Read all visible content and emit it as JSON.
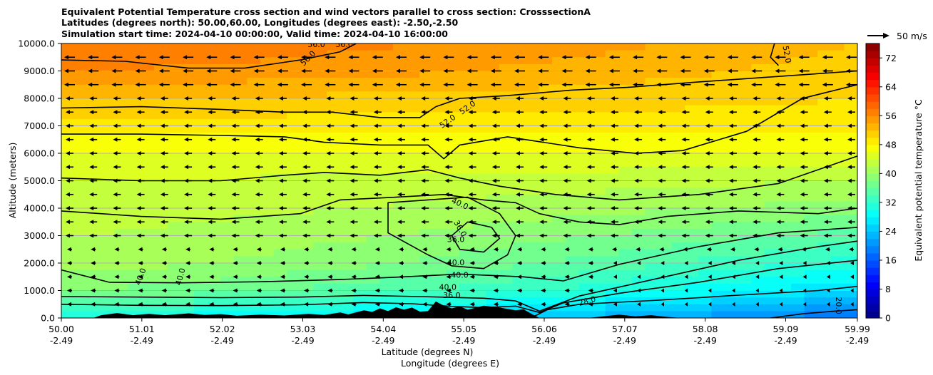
{
  "chart_data": {
    "type": "heatmap",
    "title_lines": [
      "Equivalent Potential Temperature cross section and wind vectors parallel to cross section: CrosssectionA",
      "Latitudes (degrees north): 50.00,60.00, Longitudes (degrees east): -2.50,-2.50",
      "Simulation start time: 2024-04-10 00:00:00, Valid time: 2024-04-10 16:00:00"
    ],
    "ylabel": "Altitude (meters)",
    "xlabel_lines": [
      "Latitude (degrees N)",
      "Longitude (degrees E)"
    ],
    "xlim": [
      50.0,
      59.99
    ],
    "ylim": [
      0,
      10000
    ],
    "x_ticks": [
      {
        "value": 50.0,
        "lat": "50.00",
        "lon": "-2.49"
      },
      {
        "value": 51.01,
        "lat": "51.01",
        "lon": "-2.49"
      },
      {
        "value": 52.02,
        "lat": "52.02",
        "lon": "-2.49"
      },
      {
        "value": 53.03,
        "lat": "53.03",
        "lon": "-2.49"
      },
      {
        "value": 54.04,
        "lat": "54.04",
        "lon": "-2.49"
      },
      {
        "value": 55.05,
        "lat": "55.05",
        "lon": "-2.49"
      },
      {
        "value": 56.06,
        "lat": "56.06",
        "lon": "-2.49"
      },
      {
        "value": 57.07,
        "lat": "57.07",
        "lon": "-2.49"
      },
      {
        "value": 58.08,
        "lat": "58.08",
        "lon": "-2.49"
      },
      {
        "value": 59.09,
        "lat": "59.09",
        "lon": "-2.49"
      },
      {
        "value": 59.99,
        "lat": "59.99",
        "lon": "-2.49"
      }
    ],
    "y_ticks": [
      {
        "value": 0,
        "label": "0.0"
      },
      {
        "value": 1000,
        "label": "1000.0"
      },
      {
        "value": 2000,
        "label": "2000.0"
      },
      {
        "value": 3000,
        "label": "3000.0"
      },
      {
        "value": 4000,
        "label": "4000.0"
      },
      {
        "value": 5000,
        "label": "5000.0"
      },
      {
        "value": 6000,
        "label": "6000.0"
      },
      {
        "value": 7000,
        "label": "7000.0"
      },
      {
        "value": 8000,
        "label": "8000.0"
      },
      {
        "value": 9000,
        "label": "9000.0"
      },
      {
        "value": 10000,
        "label": "10000.0"
      }
    ],
    "grid": "horizontal",
    "colorbar": {
      "label": "Equivalent potential temperature $^\\circ$C",
      "label_text": "Equivalent potential temperature °C",
      "min": 0,
      "max": 76,
      "ticks": [
        "0",
        "8",
        "16",
        "24",
        "32",
        "40",
        "48",
        "56",
        "64",
        "72"
      ],
      "colormap": "jet"
    },
    "quiver_key": {
      "label": "50 m/s",
      "value": 50
    },
    "wind_direction": "toward decreasing latitude (leftward)",
    "theta_e_profile": [
      {
        "alt": 0,
        "north_edge": 18,
        "south_edge": 30
      },
      {
        "alt": 1000,
        "north_edge": 26,
        "south_edge": 38
      },
      {
        "alt": 2000,
        "north_edge": 31,
        "south_edge": 41
      },
      {
        "alt": 3000,
        "north_edge": 35,
        "south_edge": 42
      },
      {
        "alt": 4000,
        "north_edge": 39,
        "south_edge": 43
      },
      {
        "alt": 5000,
        "north_edge": 42,
        "south_edge": 44
      },
      {
        "alt": 6000,
        "north_edge": 46,
        "south_edge": 46
      },
      {
        "alt": 7000,
        "north_edge": 49,
        "south_edge": 49
      },
      {
        "alt": 8000,
        "north_edge": 50,
        "south_edge": 52
      },
      {
        "alt": 9000,
        "north_edge": 51,
        "south_edge": 56
      },
      {
        "alt": 10000,
        "north_edge": 52,
        "south_edge": 58
      }
    ],
    "contours": [
      {
        "level": 28,
        "points": [
          [
            55.9,
            10
          ],
          [
            56.1,
            300
          ],
          [
            56.5,
            500
          ],
          [
            57.5,
            650
          ],
          [
            58.5,
            830
          ],
          [
            59.5,
            1000
          ],
          [
            59.99,
            1150
          ]
        ]
      },
      {
        "level": 20,
        "points": [
          [
            58.9,
            0
          ],
          [
            59.3,
            150
          ],
          [
            59.7,
            250
          ],
          [
            59.99,
            300
          ]
        ]
      },
      {
        "level": 36,
        "points": [
          [
            50.0,
            500
          ],
          [
            51.0,
            460
          ],
          [
            52.0,
            450
          ],
          [
            53.0,
            480
          ],
          [
            53.8,
            560
          ],
          [
            54.4,
            520
          ],
          [
            54.9,
            420
          ],
          [
            55.3,
            380
          ],
          [
            55.7,
            430
          ],
          [
            56.0,
            200
          ],
          [
            56.3,
            550
          ],
          [
            57.0,
            900
          ],
          [
            58.0,
            1300
          ],
          [
            59.0,
            1800
          ],
          [
            59.99,
            2100
          ]
        ]
      },
      {
        "level": 40,
        "points": [
          [
            50.0,
            780
          ],
          [
            51.0,
            760
          ],
          [
            52.0,
            740
          ],
          [
            53.0,
            760
          ],
          [
            53.8,
            820
          ],
          [
            54.5,
            780
          ],
          [
            55.3,
            720
          ],
          [
            55.7,
            620
          ],
          [
            56.0,
            250
          ],
          [
            56.5,
            800
          ],
          [
            57.5,
            1450
          ],
          [
            58.5,
            2100
          ],
          [
            59.5,
            2600
          ],
          [
            59.99,
            2800
          ]
        ]
      },
      {
        "level": 40,
        "points": [
          [
            50.0,
            1750
          ],
          [
            50.6,
            1300
          ],
          [
            51.5,
            1280
          ],
          [
            52.5,
            1320
          ],
          [
            53.5,
            1400
          ],
          [
            54.3,
            1500
          ],
          [
            55.0,
            1600
          ],
          [
            55.8,
            1500
          ],
          [
            56.3,
            1350
          ],
          [
            57.0,
            1950
          ],
          [
            58.0,
            2600
          ],
          [
            59.0,
            3100
          ],
          [
            59.99,
            3300
          ]
        ]
      },
      {
        "level": 40,
        "points": [
          [
            54.6,
            4300
          ],
          [
            54.1,
            4200
          ],
          [
            54.1,
            3100
          ],
          [
            54.6,
            2300
          ],
          [
            54.9,
            1900
          ],
          [
            55.3,
            1800
          ],
          [
            55.6,
            2300
          ],
          [
            55.7,
            3000
          ],
          [
            55.5,
            3800
          ],
          [
            55.1,
            4400
          ],
          [
            54.6,
            4300
          ]
        ]
      },
      {
        "level": 36,
        "points": [
          [
            54.9,
            3000
          ],
          [
            55.1,
            3500
          ],
          [
            55.4,
            3300
          ],
          [
            55.5,
            2900
          ],
          [
            55.3,
            2400
          ],
          [
            55.0,
            2500
          ],
          [
            54.9,
            3000
          ]
        ]
      },
      {
        "level": 44,
        "points": [
          [
            50.0,
            3900
          ],
          [
            51.0,
            3700
          ],
          [
            52.0,
            3600
          ],
          [
            53.0,
            3800
          ],
          [
            53.5,
            4300
          ],
          [
            54.2,
            4400
          ],
          [
            54.8,
            4500
          ],
          [
            55.3,
            4300
          ],
          [
            55.7,
            4200
          ],
          [
            56.0,
            3800
          ],
          [
            56.5,
            3500
          ],
          [
            57.0,
            3400
          ],
          [
            57.6,
            3700
          ],
          [
            58.5,
            3900
          ],
          [
            59.5,
            3800
          ],
          [
            59.99,
            4000
          ]
        ]
      },
      {
        "level": 46,
        "points": [
          [
            50.0,
            5100
          ],
          [
            51.0,
            5000
          ],
          [
            52.0,
            5000
          ],
          [
            52.8,
            5200
          ],
          [
            53.3,
            5300
          ],
          [
            54.0,
            5200
          ],
          [
            54.6,
            5400
          ],
          [
            55.0,
            5100
          ],
          [
            55.5,
            4800
          ],
          [
            56.2,
            4500
          ],
          [
            57.0,
            4300
          ],
          [
            57.5,
            4400
          ],
          [
            58.0,
            4500
          ],
          [
            59.0,
            4900
          ],
          [
            59.99,
            5900
          ]
        ]
      },
      {
        "level": 48,
        "points": [
          [
            50.0,
            6700
          ],
          [
            51.0,
            6700
          ],
          [
            52.0,
            6650
          ],
          [
            52.8,
            6600
          ],
          [
            53.3,
            6400
          ],
          [
            54.0,
            6300
          ],
          [
            54.6,
            6300
          ],
          [
            54.8,
            5800
          ],
          [
            55.0,
            6300
          ],
          [
            55.6,
            6600
          ],
          [
            56.5,
            6200
          ],
          [
            57.2,
            6000
          ],
          [
            57.8,
            6100
          ],
          [
            58.6,
            6800
          ],
          [
            59.3,
            8000
          ],
          [
            59.99,
            8500
          ]
        ]
      },
      {
        "level": 52,
        "points": [
          [
            50.0,
            7650
          ],
          [
            51.0,
            7700
          ],
          [
            52.0,
            7600
          ],
          [
            52.8,
            7500
          ],
          [
            53.4,
            7500
          ],
          [
            54.0,
            7300
          ],
          [
            54.5,
            7300
          ],
          [
            54.7,
            7700
          ],
          [
            55.0,
            8000
          ],
          [
            55.6,
            8100
          ],
          [
            56.4,
            8300
          ],
          [
            57.1,
            8400
          ],
          [
            58.0,
            8600
          ],
          [
            59.0,
            8800
          ],
          [
            59.99,
            9000
          ]
        ]
      },
      {
        "level": 52,
        "points": [
          [
            59.0,
            9200
          ],
          [
            58.9,
            9500
          ],
          [
            58.95,
            10000
          ]
        ]
      },
      {
        "level": 56,
        "points": [
          [
            50.0,
            9400
          ],
          [
            50.8,
            9350
          ],
          [
            51.6,
            9100
          ],
          [
            52.3,
            9100
          ],
          [
            53.0,
            9400
          ],
          [
            53.5,
            9700
          ],
          [
            53.7,
            10000
          ]
        ]
      }
    ],
    "contour_labels": [
      {
        "text": "56.0",
        "lat": 53.1,
        "alt": 9450,
        "rot": -45
      },
      {
        "text": "56.0",
        "lat": 53.2,
        "alt": 9950,
        "rot": 0
      },
      {
        "text": "56.0",
        "lat": 53.55,
        "alt": 9950,
        "rot": 0
      },
      {
        "text": "52.0",
        "lat": 54.85,
        "alt": 7150,
        "rot": -35
      },
      {
        "text": "52.0",
        "lat": 55.1,
        "alt": 7650,
        "rot": -35
      },
      {
        "text": "52.0",
        "lat": 59.1,
        "alt": 9600,
        "rot": 80
      },
      {
        "text": "40.0",
        "lat": 55.0,
        "alt": 4150,
        "rot": 25
      },
      {
        "text": "36.0",
        "lat": 55.0,
        "alt": 3250,
        "rot": 60
      },
      {
        "text": "36.0",
        "lat": 54.95,
        "alt": 2850,
        "rot": 0
      },
      {
        "text": "40.0",
        "lat": 54.95,
        "alt": 2000,
        "rot": 0
      },
      {
        "text": "40.0",
        "lat": 55.0,
        "alt": 1550,
        "rot": 0
      },
      {
        "text": "40.0",
        "lat": 54.85,
        "alt": 1100,
        "rot": 0
      },
      {
        "text": "36.0",
        "lat": 54.9,
        "alt": 800,
        "rot": 0
      },
      {
        "text": "28.0",
        "lat": 56.6,
        "alt": 600,
        "rot": -15
      },
      {
        "text": "20.0",
        "lat": 59.75,
        "alt": 450,
        "rot": 90
      },
      {
        "text": "40.0",
        "lat": 51.0,
        "alt": 1500,
        "rot": -70
      },
      {
        "text": "40.0",
        "lat": 51.5,
        "alt": 1500,
        "rot": -75
      }
    ],
    "terrain": [
      [
        50.0,
        0
      ],
      [
        50.4,
        0
      ],
      [
        50.5,
        100
      ],
      [
        50.7,
        180
      ],
      [
        50.9,
        100
      ],
      [
        51.1,
        150
      ],
      [
        51.3,
        100
      ],
      [
        51.6,
        170
      ],
      [
        51.8,
        110
      ],
      [
        52.0,
        140
      ],
      [
        52.2,
        80
      ],
      [
        52.5,
        120
      ],
      [
        52.8,
        90
      ],
      [
        53.1,
        150
      ],
      [
        53.3,
        110
      ],
      [
        53.5,
        200
      ],
      [
        53.6,
        130
      ],
      [
        53.8,
        280
      ],
      [
        53.9,
        220
      ],
      [
        54.0,
        350
      ],
      [
        54.1,
        250
      ],
      [
        54.2,
        390
      ],
      [
        54.3,
        300
      ],
      [
        54.4,
        380
      ],
      [
        54.5,
        230
      ],
      [
        54.6,
        250
      ],
      [
        54.7,
        600
      ],
      [
        54.8,
        450
      ],
      [
        54.9,
        350
      ],
      [
        55.0,
        420
      ],
      [
        55.1,
        300
      ],
      [
        55.3,
        450
      ],
      [
        55.5,
        380
      ],
      [
        55.7,
        280
      ],
      [
        55.8,
        320
      ],
      [
        55.9,
        150
      ],
      [
        56.0,
        0
      ],
      [
        56.6,
        0
      ],
      [
        56.8,
        60
      ],
      [
        57.0,
        120
      ],
      [
        57.2,
        60
      ],
      [
        57.4,
        100
      ],
      [
        57.6,
        40
      ],
      [
        57.8,
        0
      ],
      [
        59.99,
        0
      ]
    ]
  }
}
